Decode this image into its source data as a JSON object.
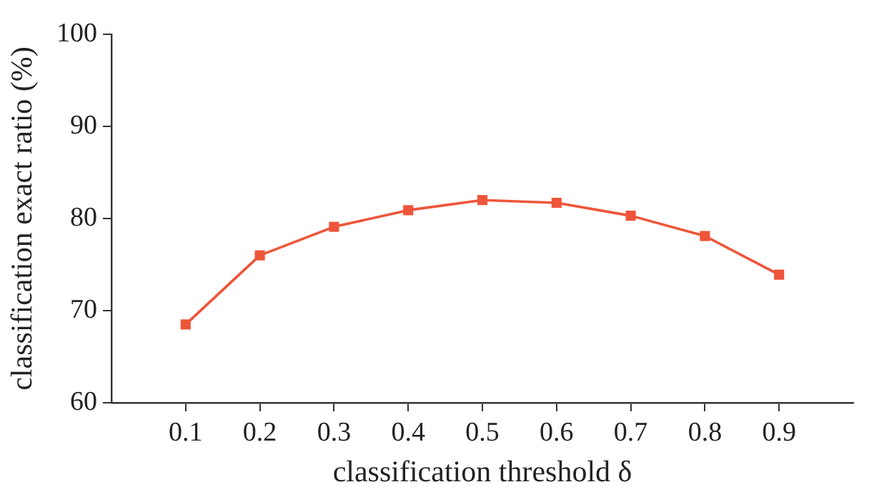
{
  "chart_data": {
    "type": "line",
    "xlabel": "classification threshold δ",
    "ylabel": "classification exact ratio (%)",
    "x": [
      0.1,
      0.2,
      0.3,
      0.4,
      0.5,
      0.6,
      0.7,
      0.8,
      0.9
    ],
    "series": [
      {
        "color": "#ee553a",
        "values": [
          68.5,
          76.0,
          79.1,
          80.9,
          82.0,
          81.7,
          80.3,
          78.1,
          73.9
        ]
      }
    ],
    "xlim": [
      0,
      1
    ],
    "xticks": [
      0.1,
      0.2,
      0.3,
      0.4,
      0.5,
      0.6,
      0.7,
      0.8,
      0.9
    ],
    "ylim": [
      60,
      100
    ],
    "yticks": [
      60,
      70,
      80,
      90,
      100
    ],
    "grid": false,
    "legend": false,
    "marker": "square",
    "line_style": "solid"
  }
}
